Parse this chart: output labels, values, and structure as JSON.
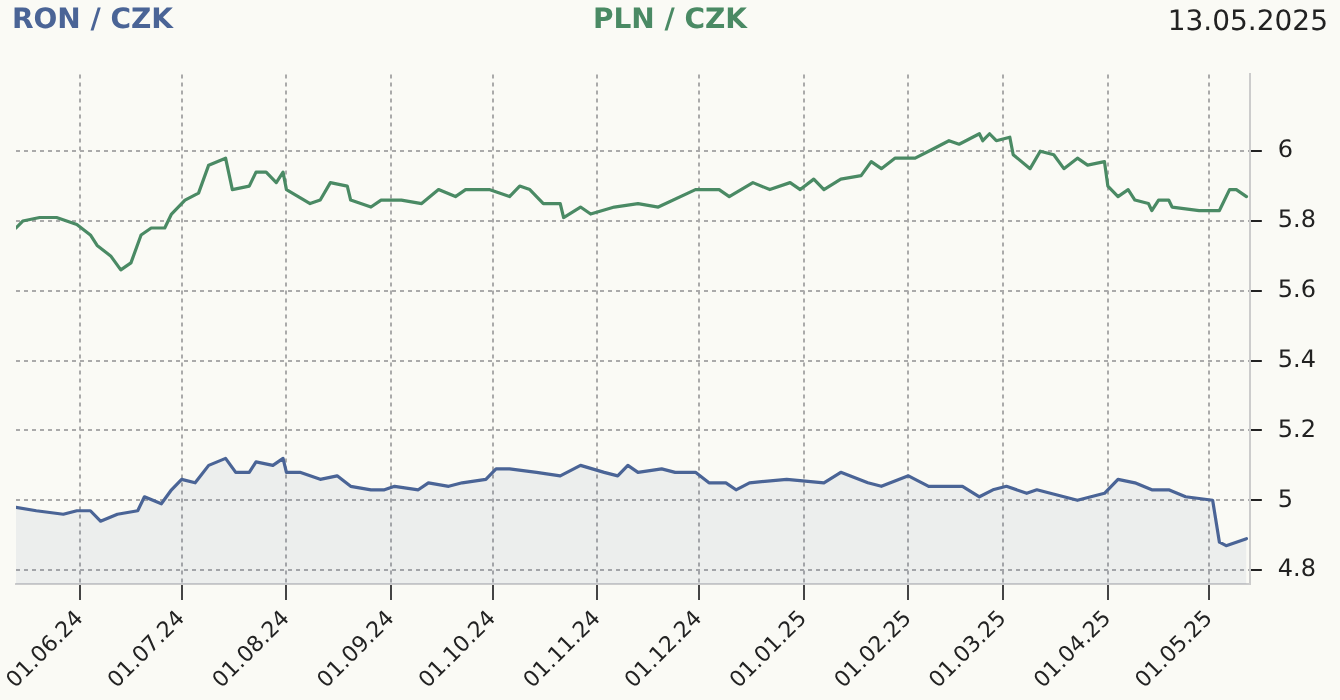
{
  "chart_data": {
    "type": "line",
    "legend": "top",
    "grid": true,
    "marker": "none",
    "line_style": "solid",
    "annotations": [
      "13.05.2025"
    ],
    "xlim": [
      "2024-05-13",
      "2025-05-13"
    ],
    "xticks": [
      {
        "value": "2024-06-01",
        "label": "01.06.24"
      },
      {
        "value": "2024-07-01",
        "label": "01.07.24"
      },
      {
        "value": "2024-08-01",
        "label": "01.08.24"
      },
      {
        "value": "2024-09-01",
        "label": "01.09.24"
      },
      {
        "value": "2024-10-01",
        "label": "01.10.24"
      },
      {
        "value": "2024-11-01",
        "label": "01.11.24"
      },
      {
        "value": "2024-12-01",
        "label": "01.12.24"
      },
      {
        "value": "2025-01-01",
        "label": "01.01.25"
      },
      {
        "value": "2025-02-01",
        "label": "01.02.25"
      },
      {
        "value": "2025-03-01",
        "label": "01.03.25"
      },
      {
        "value": "2025-04-01",
        "label": "01.04.25"
      },
      {
        "value": "2025-05-01",
        "label": "01.05.25"
      }
    ],
    "ylim": [
      4.76,
      6.22
    ],
    "yticks": [
      4.8,
      5,
      5.2,
      5.4,
      5.6,
      5.8,
      6
    ],
    "series": [
      {
        "name": "RON / CZK",
        "type": "area",
        "color": "#4a6496",
        "x": [
          "2024-05-13",
          "2024-05-19",
          "2024-05-27",
          "2024-05-31",
          "2024-06-04",
          "2024-06-07",
          "2024-06-12",
          "2024-06-18",
          "2024-06-20",
          "2024-06-25",
          "2024-06-28",
          "2024-07-01",
          "2024-07-05",
          "2024-07-09",
          "2024-07-14",
          "2024-07-17",
          "2024-07-21",
          "2024-07-23",
          "2024-07-28",
          "2024-07-31",
          "2024-08-01",
          "2024-08-05",
          "2024-08-11",
          "2024-08-16",
          "2024-08-20",
          "2024-08-26",
          "2024-08-30",
          "2024-09-02",
          "2024-09-09",
          "2024-09-12",
          "2024-09-18",
          "2024-09-22",
          "2024-09-29",
          "2024-10-02",
          "2024-10-06",
          "2024-10-14",
          "2024-10-21",
          "2024-10-27",
          "2024-11-03",
          "2024-11-07",
          "2024-11-10",
          "2024-11-13",
          "2024-11-20",
          "2024-11-24",
          "2024-11-30",
          "2024-12-04",
          "2024-12-09",
          "2024-12-12",
          "2024-12-16",
          "2024-12-27",
          "2025-01-07",
          "2025-01-12",
          "2025-01-20",
          "2025-01-24",
          "2025-02-01",
          "2025-02-07",
          "2025-02-17",
          "2025-02-22",
          "2025-02-26",
          "2025-03-02",
          "2025-03-08",
          "2025-03-11",
          "2025-03-23",
          "2025-03-31",
          "2025-04-04",
          "2025-04-09",
          "2025-04-14",
          "2025-04-19",
          "2025-04-24",
          "2025-05-02",
          "2025-05-04",
          "2025-05-06",
          "2025-05-12"
        ],
        "values": [
          4.98,
          4.97,
          4.96,
          4.97,
          4.97,
          4.94,
          4.96,
          4.97,
          5.01,
          4.99,
          5.03,
          5.06,
          5.05,
          5.1,
          5.12,
          5.08,
          5.08,
          5.11,
          5.1,
          5.12,
          5.08,
          5.08,
          5.06,
          5.07,
          5.04,
          5.03,
          5.03,
          5.04,
          5.03,
          5.05,
          5.04,
          5.05,
          5.06,
          5.09,
          5.09,
          5.08,
          5.07,
          5.1,
          5.08,
          5.07,
          5.1,
          5.08,
          5.09,
          5.08,
          5.08,
          5.05,
          5.05,
          5.03,
          5.05,
          5.06,
          5.05,
          5.08,
          5.05,
          5.04,
          5.07,
          5.04,
          5.04,
          5.01,
          5.03,
          5.04,
          5.02,
          5.03,
          5.0,
          5.02,
          5.06,
          5.05,
          5.03,
          5.03,
          5.01,
          5.0,
          4.88,
          4.87,
          4.89
        ]
      },
      {
        "name": "PLN / CZK",
        "color": "#4a8a64",
        "x": [
          "2024-05-13",
          "2024-05-15",
          "2024-05-20",
          "2024-05-25",
          "2024-05-31",
          "2024-06-04",
          "2024-06-06",
          "2024-06-10",
          "2024-06-13",
          "2024-06-16",
          "2024-06-19",
          "2024-06-22",
          "2024-06-26",
          "2024-06-28",
          "2024-07-02",
          "2024-07-06",
          "2024-07-09",
          "2024-07-14",
          "2024-07-16",
          "2024-07-21",
          "2024-07-23",
          "2024-07-26",
          "2024-07-29",
          "2024-07-31",
          "2024-08-01",
          "2024-08-08",
          "2024-08-11",
          "2024-08-14",
          "2024-08-19",
          "2024-08-20",
          "2024-08-26",
          "2024-08-29",
          "2024-09-04",
          "2024-09-10",
          "2024-09-15",
          "2024-09-20",
          "2024-09-23",
          "2024-09-30",
          "2024-10-06",
          "2024-10-09",
          "2024-10-12",
          "2024-10-16",
          "2024-10-21",
          "2024-10-22",
          "2024-10-27",
          "2024-10-30",
          "2024-11-06",
          "2024-11-13",
          "2024-11-19",
          "2024-11-30",
          "2024-12-07",
          "2024-12-10",
          "2024-12-17",
          "2024-12-22",
          "2024-12-28",
          "2024-12-31",
          "2025-01-04",
          "2025-01-07",
          "2025-01-12",
          "2025-01-18",
          "2025-01-21",
          "2025-01-24",
          "2025-01-28",
          "2025-02-03",
          "2025-02-09",
          "2025-02-13",
          "2025-02-16",
          "2025-02-22",
          "2025-02-23",
          "2025-02-25",
          "2025-02-27",
          "2025-03-03",
          "2025-03-04",
          "2025-03-09",
          "2025-03-12",
          "2025-03-16",
          "2025-03-19",
          "2025-03-23",
          "2025-03-26",
          "2025-03-31",
          "2025-04-01",
          "2025-04-04",
          "2025-04-07",
          "2025-04-09",
          "2025-04-13",
          "2025-04-14",
          "2025-04-16",
          "2025-04-19",
          "2025-04-20",
          "2025-04-28",
          "2025-05-04",
          "2025-05-07",
          "2025-05-09",
          "2025-05-12"
        ],
        "values": [
          5.78,
          5.8,
          5.81,
          5.81,
          5.79,
          5.76,
          5.73,
          5.7,
          5.66,
          5.68,
          5.76,
          5.78,
          5.78,
          5.82,
          5.86,
          5.88,
          5.96,
          5.98,
          5.89,
          5.9,
          5.94,
          5.94,
          5.91,
          5.94,
          5.89,
          5.85,
          5.86,
          5.91,
          5.9,
          5.86,
          5.84,
          5.86,
          5.86,
          5.85,
          5.89,
          5.87,
          5.89,
          5.89,
          5.87,
          5.9,
          5.89,
          5.85,
          5.85,
          5.81,
          5.84,
          5.82,
          5.84,
          5.85,
          5.84,
          5.89,
          5.89,
          5.87,
          5.91,
          5.89,
          5.91,
          5.89,
          5.92,
          5.89,
          5.92,
          5.93,
          5.97,
          5.95,
          5.98,
          5.98,
          6.01,
          6.03,
          6.02,
          6.05,
          6.03,
          6.05,
          6.03,
          6.04,
          5.99,
          5.95,
          6.0,
          5.99,
          5.95,
          5.98,
          5.96,
          5.97,
          5.9,
          5.87,
          5.89,
          5.86,
          5.85,
          5.83,
          5.86,
          5.86,
          5.84,
          5.83,
          5.83,
          5.89,
          5.89,
          5.87
        ]
      }
    ]
  }
}
